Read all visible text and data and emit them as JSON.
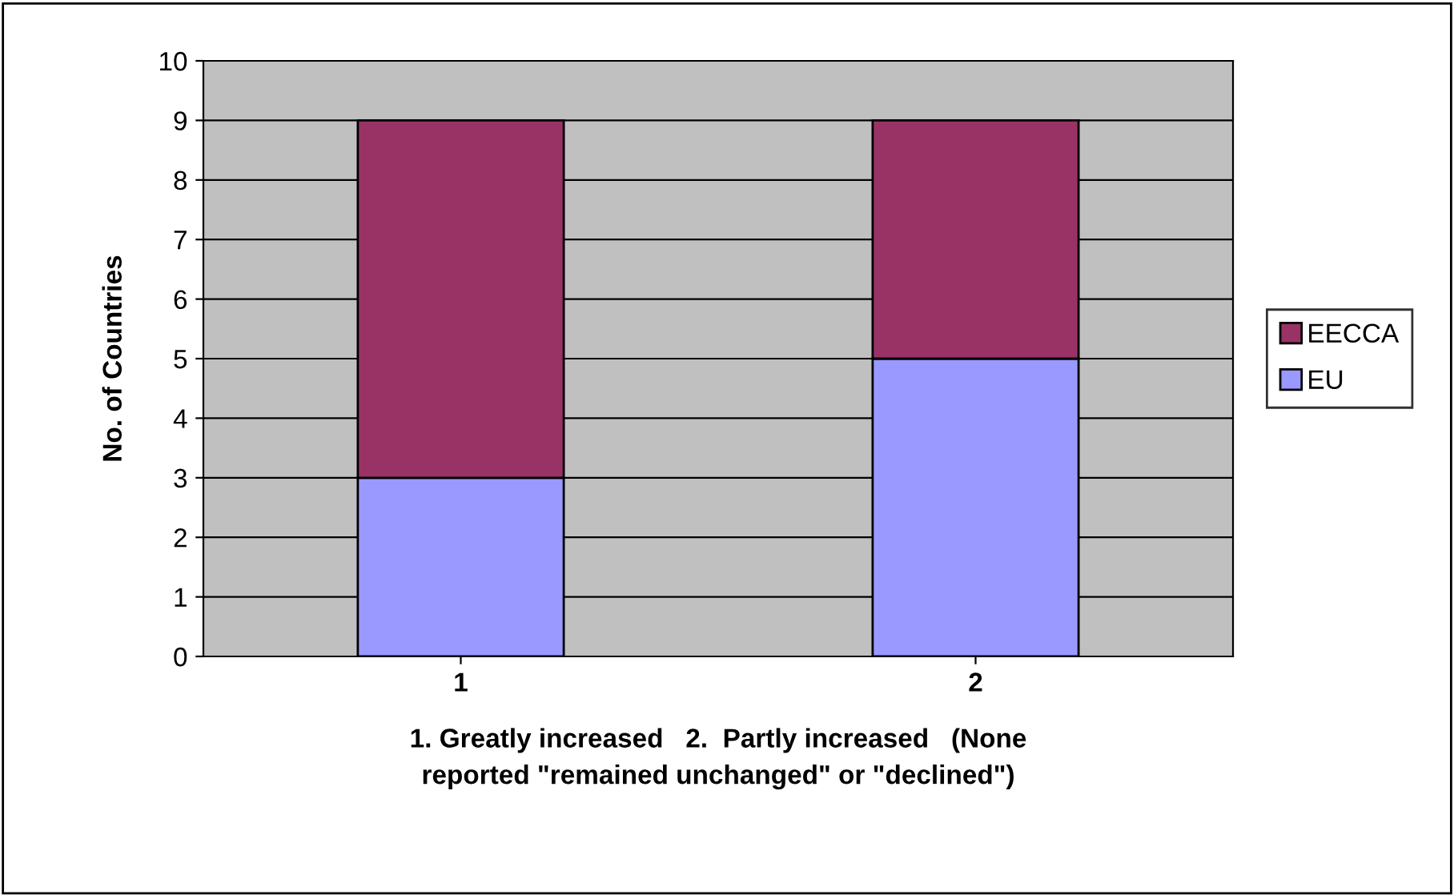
{
  "chart_data": {
    "type": "bar",
    "stacked": true,
    "categories": [
      "1",
      "2"
    ],
    "series": [
      {
        "name": "EU",
        "color": "#9999ff",
        "values": [
          3,
          5
        ]
      },
      {
        "name": "EECCA",
        "color": "#993366",
        "values": [
          6,
          4
        ]
      }
    ],
    "ylabel": "No. of Countries",
    "xlabel": "1. Greatly increased   2.  Partly increased   (None\nreported \"remained unchanged\" or \"declined\")",
    "ylim": [
      0,
      10
    ],
    "yticks": [
      0,
      1,
      2,
      3,
      4,
      5,
      6,
      7,
      8,
      9,
      10
    ],
    "grid": "y",
    "legend": "right"
  }
}
